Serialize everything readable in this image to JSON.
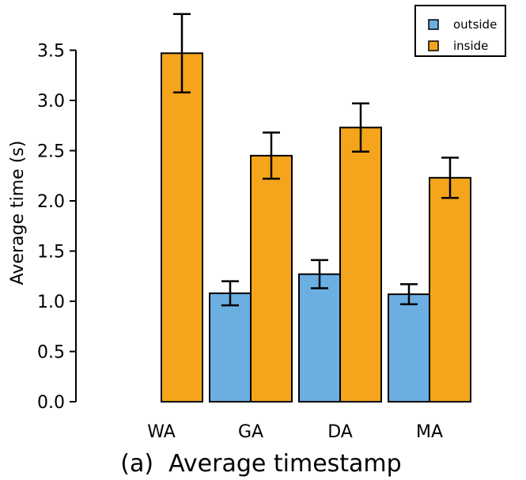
{
  "chart_data": {
    "type": "bar",
    "title": "",
    "caption": "(a)  Average timestamp",
    "xlabel": "",
    "ylabel": "Average time (s)",
    "ylim": [
      0,
      3.5
    ],
    "yticks": [
      "0.0",
      "0.5",
      "1.0",
      "1.5",
      "2.0",
      "2.5",
      "3.0",
      "3.5"
    ],
    "categories": [
      "WA",
      "GA",
      "DA",
      "MA"
    ],
    "series": [
      {
        "name": "outside",
        "color": "#6aaee2",
        "values": [
          null,
          1.08,
          1.27,
          1.07
        ],
        "errors": [
          null,
          0.12,
          0.14,
          0.1
        ]
      },
      {
        "name": "inside",
        "color": "#f5a51c",
        "values": [
          3.47,
          2.45,
          2.73,
          2.23
        ],
        "errors": [
          0.39,
          0.23,
          0.24,
          0.2
        ]
      }
    ],
    "legend": "top-right",
    "grid": false
  }
}
